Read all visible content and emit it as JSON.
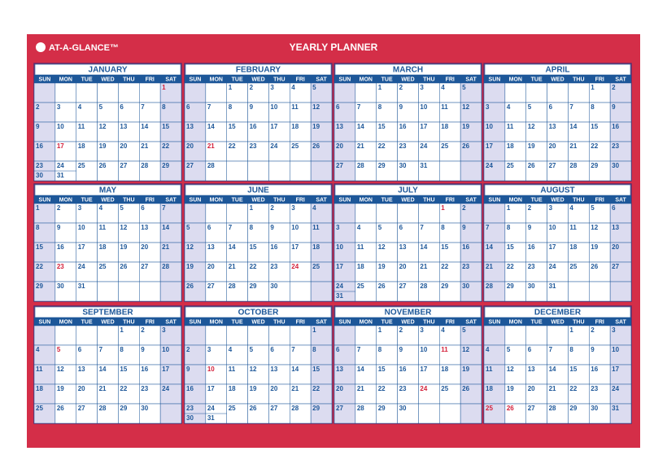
{
  "header": {
    "logo": "AT-A-GLANCE™",
    "title": "YEARLY PLANNER"
  },
  "weekdays": [
    "SUN",
    "MON",
    "TUE",
    "WED",
    "THU",
    "FRI",
    "SAT"
  ],
  "months": [
    {
      "name": "JANUARY",
      "red": [
        1,
        17
      ],
      "weeks": [
        [
          null,
          null,
          null,
          null,
          null,
          null,
          1
        ],
        [
          2,
          3,
          4,
          5,
          6,
          7,
          8
        ],
        [
          9,
          10,
          11,
          12,
          13,
          14,
          15
        ],
        [
          16,
          17,
          18,
          19,
          20,
          21,
          22
        ],
        [
          23,
          24,
          25,
          26,
          27,
          28,
          29
        ],
        [
          30,
          31
        ]
      ]
    },
    {
      "name": "FEBRUARY",
      "red": [
        21
      ],
      "weeks": [
        [
          null,
          null,
          1,
          2,
          3,
          4,
          5
        ],
        [
          6,
          7,
          8,
          9,
          10,
          11,
          12
        ],
        [
          13,
          14,
          15,
          16,
          17,
          18,
          19
        ],
        [
          20,
          21,
          22,
          23,
          24,
          25,
          26
        ],
        [
          27,
          28
        ]
      ]
    },
    {
      "name": "MARCH",
      "red": [],
      "weeks": [
        [
          null,
          null,
          1,
          2,
          3,
          4,
          5
        ],
        [
          6,
          7,
          8,
          9,
          10,
          11,
          12
        ],
        [
          13,
          14,
          15,
          16,
          17,
          18,
          19
        ],
        [
          20,
          21,
          22,
          23,
          24,
          25,
          26
        ],
        [
          27,
          28,
          29,
          30,
          31
        ]
      ]
    },
    {
      "name": "APRIL",
      "red": [],
      "weeks": [
        [
          null,
          null,
          null,
          null,
          null,
          1,
          2
        ],
        [
          3,
          4,
          5,
          6,
          7,
          8,
          9
        ],
        [
          10,
          11,
          12,
          13,
          14,
          15,
          16
        ],
        [
          17,
          18,
          19,
          20,
          21,
          22,
          23
        ],
        [
          24,
          25,
          26,
          27,
          28,
          29,
          30
        ]
      ]
    },
    {
      "name": "MAY",
      "red": [
        23
      ],
      "weeks": [
        [
          1,
          2,
          3,
          4,
          5,
          6,
          7
        ],
        [
          8,
          9,
          10,
          11,
          12,
          13,
          14
        ],
        [
          15,
          16,
          17,
          18,
          19,
          20,
          21
        ],
        [
          22,
          23,
          24,
          25,
          26,
          27,
          28
        ],
        [
          29,
          30,
          31
        ]
      ]
    },
    {
      "name": "JUNE",
      "red": [
        24
      ],
      "weeks": [
        [
          null,
          null,
          null,
          1,
          2,
          3,
          4
        ],
        [
          5,
          6,
          7,
          8,
          9,
          10,
          11
        ],
        [
          12,
          13,
          14,
          15,
          16,
          17,
          18
        ],
        [
          19,
          20,
          21,
          22,
          23,
          24,
          25
        ],
        [
          26,
          27,
          28,
          29,
          30
        ]
      ]
    },
    {
      "name": "JULY",
      "red": [
        1
      ],
      "weeks": [
        [
          null,
          null,
          null,
          null,
          null,
          1,
          2
        ],
        [
          3,
          4,
          5,
          6,
          7,
          8,
          9
        ],
        [
          10,
          11,
          12,
          13,
          14,
          15,
          16
        ],
        [
          17,
          18,
          19,
          20,
          21,
          22,
          23
        ],
        [
          24,
          25,
          26,
          27,
          28,
          29,
          30
        ],
        [
          31
        ]
      ]
    },
    {
      "name": "AUGUST",
      "red": [],
      "weeks": [
        [
          null,
          1,
          2,
          3,
          4,
          5,
          6
        ],
        [
          7,
          8,
          9,
          10,
          11,
          12,
          13
        ],
        [
          14,
          15,
          16,
          17,
          18,
          19,
          20
        ],
        [
          21,
          22,
          23,
          24,
          25,
          26,
          27
        ],
        [
          28,
          29,
          30,
          31
        ]
      ]
    },
    {
      "name": "SEPTEMBER",
      "red": [
        5
      ],
      "weeks": [
        [
          null,
          null,
          null,
          null,
          1,
          2,
          3
        ],
        [
          4,
          5,
          6,
          7,
          8,
          9,
          10
        ],
        [
          11,
          12,
          13,
          14,
          15,
          16,
          17
        ],
        [
          18,
          19,
          20,
          21,
          22,
          23,
          24
        ],
        [
          25,
          26,
          27,
          28,
          29,
          30
        ]
      ]
    },
    {
      "name": "OCTOBER",
      "red": [
        10
      ],
      "weeks": [
        [
          null,
          null,
          null,
          null,
          null,
          null,
          1
        ],
        [
          2,
          3,
          4,
          5,
          6,
          7,
          8
        ],
        [
          9,
          10,
          11,
          12,
          13,
          14,
          15
        ],
        [
          16,
          17,
          18,
          19,
          20,
          21,
          22
        ],
        [
          23,
          24,
          25,
          26,
          27,
          28,
          29
        ],
        [
          30,
          31
        ]
      ]
    },
    {
      "name": "NOVEMBER",
      "red": [
        11,
        24
      ],
      "weeks": [
        [
          null,
          null,
          1,
          2,
          3,
          4,
          5
        ],
        [
          6,
          7,
          8,
          9,
          10,
          11,
          12
        ],
        [
          13,
          14,
          15,
          16,
          17,
          18,
          19
        ],
        [
          20,
          21,
          22,
          23,
          24,
          25,
          26
        ],
        [
          27,
          28,
          29,
          30
        ]
      ]
    },
    {
      "name": "DECEMBER",
      "red": [
        25,
        26
      ],
      "weeks": [
        [
          null,
          null,
          null,
          null,
          1,
          2,
          3
        ],
        [
          4,
          5,
          6,
          7,
          8,
          9,
          10
        ],
        [
          11,
          12,
          13,
          14,
          15,
          16,
          17
        ],
        [
          18,
          19,
          20,
          21,
          22,
          23,
          24
        ],
        [
          25,
          26,
          27,
          28,
          29,
          30,
          31
        ]
      ]
    }
  ]
}
